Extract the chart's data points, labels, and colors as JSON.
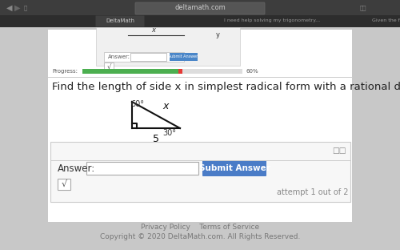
{
  "title": "Find the length of side x in simplest radical form with a rational denominator.",
  "title_fontsize": 9.5,
  "bg_top": "#c8c8c8",
  "bg_browser_bar": "#3a3a3a",
  "bg_tab_active": "#2a2a2a",
  "bg_main": "#e8e8e8",
  "bg_white": "#ffffff",
  "bg_card": "#f0f0f0",
  "bg_answer_box": "#f7f7f7",
  "triangle": {
    "angle_top_label": "60°",
    "angle_bottom_right_label": "30°",
    "side_bottom_label": "5",
    "side_hyp_label": "x",
    "line_color": "#111111",
    "line_width": 1.5
  },
  "answer_label": "Answer:",
  "submit_label": "Submit Answer",
  "attempt_text": "attempt 1 out of 2",
  "footer_privacy": "Privacy Policy",
  "footer_terms": "Terms of Service",
  "footer_copy": "Copyright © 2020 DeltaMath.com. All Rights Reserved.",
  "progress_color": "#4caf50",
  "progress_pct": "60%",
  "browser_url": "deltamath.com"
}
